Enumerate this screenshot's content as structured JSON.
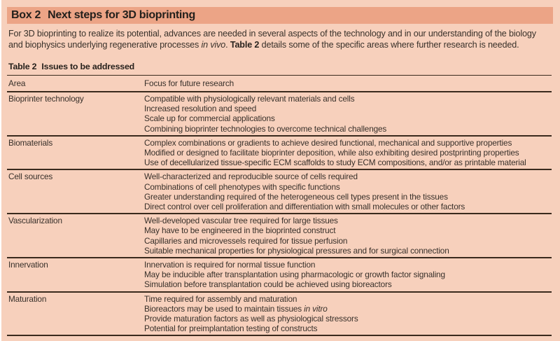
{
  "colors": {
    "page_background": "#f7d0bc",
    "band_background": "#eca486",
    "text": "#38302a",
    "rule": "#3a2a1d"
  },
  "box": {
    "label": "Box 2",
    "title": "Next steps for 3D bioprinting",
    "intro": {
      "part1": "For 3D bioprinting to realize its potential, advances are needed in several aspects of the technology and in our understanding of the biology and biophysics underlying regenerative processes ",
      "italic1": "in vivo",
      "part2": ". ",
      "bold1": "Table 2",
      "part3": " details some of the specific areas where further research is needed."
    }
  },
  "table": {
    "label": "Table 2",
    "title": "Issues to be addressed",
    "columns": [
      "Area",
      "Focus for future research"
    ],
    "rows": [
      {
        "area": "Bioprinter technology",
        "items": [
          "Compatible with physiologically relevant materials and cells",
          "Increased resolution and speed",
          "Scale up for commercial applications",
          "Combining bioprinter technologies to overcome technical challenges"
        ]
      },
      {
        "area": "Biomaterials",
        "items": [
          "Complex combinations or gradients to achieve desired functional, mechanical and supportive properties",
          "Modified or designed to facilitate bioprinter deposition, while also exhibiting desired postprinting properties",
          "Use of decellularized tissue-specific ECM scaffolds to study ECM compositions, and/or as printable material"
        ]
      },
      {
        "area": "Cell sources",
        "items": [
          "Well-characterized and reproducible source of cells required",
          "Combinations of cell phenotypes with specific functions",
          "Greater understanding required of the heterogeneous cell types present in the tissues",
          "Direct control over cell proliferation and differentiation with small molecules or other factors"
        ]
      },
      {
        "area": "Vascularization",
        "items": [
          "Well-developed vascular tree required for large tissues",
          "May have to be engineered in the bioprinted construct",
          "Capillaries and microvessels required for tissue perfusion",
          "Suitable mechanical properties for physiological pressures and for surgical connection"
        ]
      },
      {
        "area": "Innervation",
        "items": [
          "Innervation is required for normal tissue function",
          "May be inducible after transplantation using pharmacologic or growth factor signaling",
          "Simulation before transplantation could be achieved using bioreactors"
        ]
      },
      {
        "area": "Maturation",
        "items": [
          "Time required for assembly and maturation",
          {
            "pre": "Bioreactors may be used to maintain tissues ",
            "italic": "in vitro"
          },
          "Provide maturation factors as well as physiological stressors",
          "Potential for preimplantation testing of constructs"
        ]
      }
    ]
  }
}
